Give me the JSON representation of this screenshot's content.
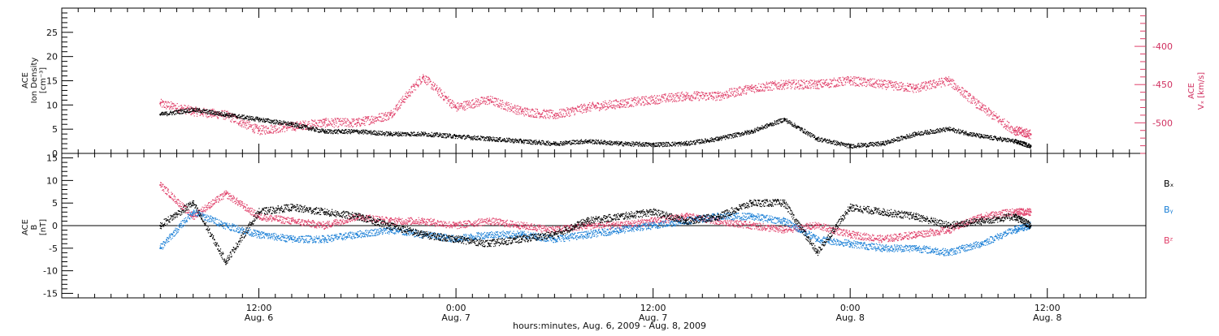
{
  "chart_data": [
    {
      "type": "scatter",
      "panel": "top",
      "ylabel_lines": [
        "ACE",
        "Ion Density",
        "[cm⁻³]"
      ],
      "yticks": [
        "0",
        "5",
        "10",
        "15",
        "20",
        "25"
      ],
      "ylim": [
        0,
        30
      ],
      "y2label_lines": [
        "ACE",
        "Vₓ [km/s]"
      ],
      "y2ticks": [
        "-400",
        "-450",
        "-500"
      ],
      "y2lim": [
        -540,
        -350
      ],
      "series": [
        {
          "key": "density",
          "color": "#000000",
          "axis": "left",
          "points_hours": [
            0,
            2,
            4,
            6,
            8,
            10,
            12,
            14,
            16,
            18,
            20,
            22,
            24,
            26,
            28,
            30,
            32,
            34,
            36,
            38,
            40,
            42,
            44,
            46,
            48,
            50,
            52,
            53
          ],
          "values": [
            8,
            9,
            8,
            7,
            6,
            4.5,
            4.5,
            4,
            4,
            3.5,
            3,
            2.5,
            2,
            2.5,
            2,
            1.8,
            2,
            3,
            4.5,
            7,
            3,
            1.5,
            2,
            4,
            5,
            3.5,
            2.5,
            1.5
          ]
        },
        {
          "key": "vx",
          "color": "#e0406a",
          "axis": "right",
          "points_hours": [
            0,
            2,
            4,
            6,
            8,
            10,
            12,
            14,
            16,
            18,
            20,
            22,
            24,
            26,
            28,
            30,
            32,
            34,
            36,
            38,
            40,
            42,
            44,
            46,
            48,
            50,
            52,
            53
          ],
          "values": [
            -475,
            -485,
            -490,
            -510,
            -505,
            -500,
            -500,
            -490,
            -440,
            -480,
            -470,
            -485,
            -490,
            -480,
            -475,
            -470,
            -465,
            -465,
            -455,
            -450,
            -450,
            -445,
            -450,
            -455,
            -445,
            -480,
            -510,
            -515
          ]
        }
      ]
    },
    {
      "type": "scatter",
      "panel": "bottom",
      "ylabel_lines": [
        "ACE",
        "B",
        "[nT]"
      ],
      "yticks": [
        "-15",
        "-10",
        "-5",
        "0",
        "5",
        "10",
        "15"
      ],
      "ylim": [
        -16,
        16
      ],
      "series": [
        {
          "name": "Bₓ",
          "color": "#000000",
          "points_hours": [
            0,
            2,
            4,
            6,
            8,
            10,
            12,
            14,
            16,
            18,
            20,
            22,
            24,
            26,
            28,
            30,
            32,
            34,
            36,
            38,
            40,
            42,
            44,
            46,
            48,
            50,
            52,
            53
          ],
          "values": [
            0,
            5,
            -8,
            3,
            4,
            3,
            2,
            0,
            -2,
            -3,
            -4,
            -3,
            -2,
            1,
            2,
            3,
            1,
            2,
            5,
            5,
            -6,
            4,
            3,
            2,
            0,
            1,
            2,
            0
          ]
        },
        {
          "name": "Bᵧ",
          "color": "#1a7fd6",
          "points_hours": [
            0,
            2,
            4,
            6,
            8,
            10,
            12,
            14,
            16,
            18,
            20,
            22,
            24,
            26,
            28,
            30,
            32,
            34,
            36,
            38,
            40,
            42,
            44,
            46,
            48,
            50,
            52,
            53
          ],
          "values": [
            -5,
            3,
            0,
            -2,
            -3,
            -3,
            -2,
            -1,
            -2,
            -3,
            -2,
            -2,
            -3,
            -2,
            -1,
            0,
            1,
            2,
            2,
            1,
            -3,
            -4,
            -5,
            -5,
            -6,
            -4,
            -1,
            0
          ]
        },
        {
          "name": "Bᶻ",
          "color": "#e0406a",
          "points_hours": [
            0,
            2,
            4,
            6,
            8,
            10,
            12,
            14,
            16,
            18,
            20,
            22,
            24,
            26,
            28,
            30,
            32,
            34,
            36,
            38,
            40,
            42,
            44,
            46,
            48,
            50,
            52,
            53
          ],
          "values": [
            9,
            2,
            7,
            2,
            1,
            0,
            2,
            1,
            1,
            0,
            1,
            0,
            -1,
            0,
            0,
            1,
            2,
            1,
            0,
            -1,
            0,
            -2,
            -3,
            -2,
            -1,
            2,
            3,
            3
          ]
        }
      ]
    }
  ],
  "xaxis": {
    "title": "hours:minutes, Aug.  6, 2009 - Aug.  8, 2009",
    "hour_range": [
      -6,
      60
    ],
    "ticks": [
      {
        "hour": 6,
        "time": "12:00",
        "date": "Aug. 6"
      },
      {
        "hour": 18,
        "time": "0:00",
        "date": "Aug. 7"
      },
      {
        "hour": 30,
        "time": "12:00",
        "date": "Aug. 7"
      },
      {
        "hour": 42,
        "time": "0:00",
        "date": "Aug. 8"
      },
      {
        "hour": 54,
        "time": "12:00",
        "date": "Aug. 8"
      }
    ]
  }
}
